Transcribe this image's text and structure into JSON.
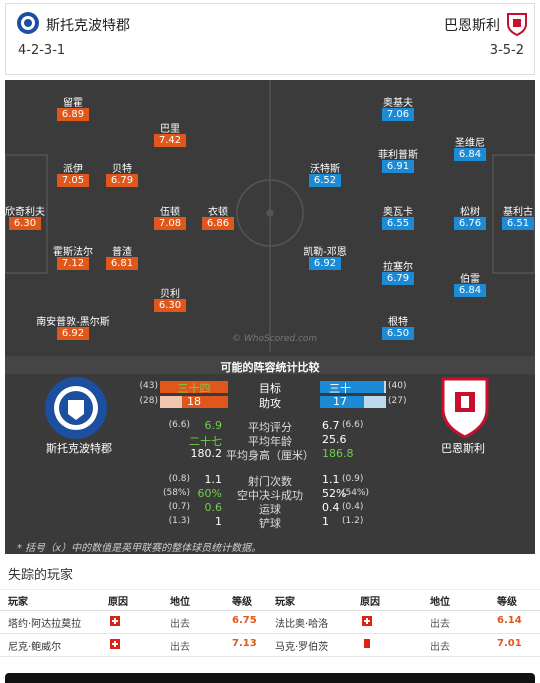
{
  "header": {
    "home": {
      "name": "斯托克波特郡",
      "formation": "4-2-3-1"
    },
    "away": {
      "name": "巴恩斯利",
      "formation": "3-5-2"
    }
  },
  "pitch": {
    "watermark": "© WhoScored.com",
    "home_players": [
      {
        "name": "留霍",
        "rating": "6.89"
      },
      {
        "name": "巴里",
        "rating": "7.42"
      },
      {
        "name": "派伊",
        "rating": "7.05"
      },
      {
        "name": "贝特",
        "rating": "6.79"
      },
      {
        "name": "欣奇利夫",
        "rating": "6.30"
      },
      {
        "name": "伍顿",
        "rating": "7.08"
      },
      {
        "name": "衣顿",
        "rating": "6.86"
      },
      {
        "name": "霍斯法尔",
        "rating": "7.12"
      },
      {
        "name": "普渣",
        "rating": "6.81"
      },
      {
        "name": "贝利",
        "rating": "6.30"
      },
      {
        "name": "南安普敦-黑尔斯",
        "rating": "6.92"
      }
    ],
    "away_players": [
      {
        "name": "奥基夫",
        "rating": "7.06"
      },
      {
        "name": "菲利普斯",
        "rating": "6.91"
      },
      {
        "name": "圣维尼",
        "rating": "6.84"
      },
      {
        "name": "沃特斯",
        "rating": "6.52"
      },
      {
        "name": "奥瓦卡",
        "rating": "6.55"
      },
      {
        "name": "松树",
        "rating": "6.76"
      },
      {
        "name": "基利古",
        "rating": "6.51"
      },
      {
        "name": "凯勒-邓恩",
        "rating": "6.92"
      },
      {
        "name": "拉塞尔",
        "rating": "6.79"
      },
      {
        "name": "伯雷",
        "rating": "6.84"
      },
      {
        "name": "根特",
        "rating": "6.50"
      }
    ]
  },
  "stats": {
    "title": "可能的阵容统计比较",
    "home_team": "斯托克波特郡",
    "away_team": "巴恩斯利",
    "bars": [
      {
        "label": "目标",
        "home": "三十四",
        "home_league": "(43)",
        "away": "三十",
        "away_league": "(40)"
      },
      {
        "label": "助攻",
        "home": "18",
        "home_league": "(28)",
        "away": "17",
        "away_league": "(27)"
      }
    ],
    "rows": [
      {
        "label": "平均评分",
        "home": "6.9",
        "home_league": "(6.6)",
        "away": "6.7",
        "away_league": "(6.6)"
      },
      {
        "label": "平均年龄",
        "home": "二十七",
        "away": "25.6"
      },
      {
        "label": "平均身高（厘米）",
        "home": "180.2",
        "away": "186.8"
      },
      {
        "label": "射门次数",
        "home": "1.1",
        "home_league": "(0.8)",
        "away": "1.1",
        "away_league": "(0.9)"
      },
      {
        "label": "空中决斗成功",
        "home": "60%",
        "home_league": "(58%)",
        "away": "52%",
        "away_league": "(54%)"
      },
      {
        "label": "运球",
        "home": "0.6",
        "home_league": "(0.7)",
        "away": "0.4",
        "away_league": "(0.4)"
      },
      {
        "label": "铲球",
        "home": "1",
        "home_league": "(1.3)",
        "away": "1",
        "away_league": "(1.2)"
      }
    ],
    "footnote": "* 括号（x）中的数值是英甲联赛的整体球员统计数据。"
  },
  "missing": {
    "title": "失踪的玩家",
    "columns": [
      "玩家",
      "原因",
      "地位",
      "等级",
      "玩家",
      "原因",
      "地位",
      "等级"
    ],
    "rows": [
      [
        {
          "player": "塔约·阿达拉莫拉",
          "status": "出去",
          "rating": "6.75"
        },
        {
          "player": "法比奥·哈洛",
          "status": "出去",
          "rating": "6.14"
        }
      ],
      [
        {
          "player": "尼克·鲍威尔",
          "status": "出去",
          "rating": "7.13"
        },
        {
          "player": "马克·罗伯茨",
          "status": "出去",
          "rating": "7.01"
        }
      ]
    ]
  }
}
